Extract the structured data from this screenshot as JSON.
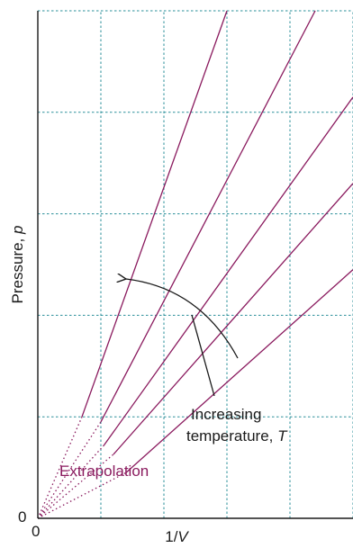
{
  "chart_data": {
    "type": "line",
    "title": "",
    "xlabel": "1/V",
    "ylabel": "Pressure, p",
    "x_tick_labels": [
      "0"
    ],
    "y_tick_labels": [
      "0"
    ],
    "xlim": [
      0,
      5
    ],
    "ylim": [
      0,
      5
    ],
    "grid": true,
    "series": [
      {
        "x": [
          0,
          0.7,
          3.0
        ],
        "y": [
          0,
          1.0,
          5.0
        ]
      },
      {
        "x": [
          0,
          1.0,
          4.4
        ],
        "y": [
          0,
          0.95,
          5.0
        ]
      },
      {
        "x": [
          0,
          1.05,
          5.0
        ],
        "y": [
          0,
          0.72,
          4.15
        ]
      },
      {
        "x": [
          0,
          1.2,
          5.0
        ],
        "y": [
          0,
          0.63,
          3.3
        ]
      },
      {
        "x": [
          0,
          1.4,
          5.0
        ],
        "y": [
          0,
          0.45,
          2.45
        ]
      }
    ],
    "solid_from_x": [
      0.7,
      1.0,
      1.05,
      1.2,
      1.4
    ],
    "annotations": {
      "arrow_label_line1": "Increasing",
      "arrow_label_line2": "temperature,",
      "arrow_label_var": "T",
      "extrapolation_label": "Extrapolation"
    }
  },
  "labels": {
    "ylabel_main": "Pressure,",
    "ylabel_var": "p",
    "xlabel_main": "1/",
    "xlabel_var": "V",
    "x_origin": "0",
    "y_origin": "0"
  }
}
